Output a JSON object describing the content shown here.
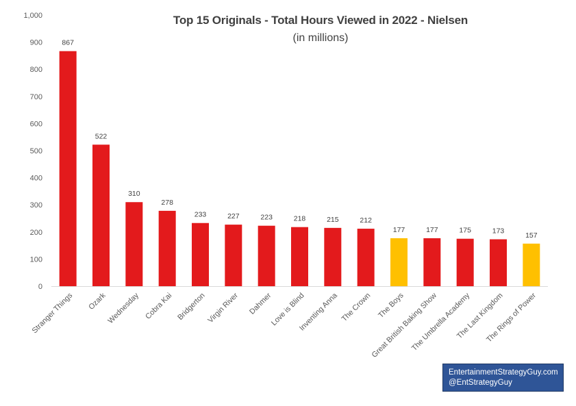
{
  "chart_data": {
    "type": "bar",
    "title": "Top 15 Originals - Total Hours Viewed in 2022 - Nielsen",
    "subtitle": "(in millions)",
    "categories": [
      "Stranger Things",
      "Ozark",
      "Wednesday",
      "Cobra Kai",
      "Bridgerton",
      "Virgin River",
      "Dahmer",
      "Love is Blind",
      "Inventing Anna",
      "The Crown",
      "The Boys",
      "Great British Baking Show",
      "The Umbrella Academy",
      "The Last Kingdom",
      "The Rings of Power"
    ],
    "values": [
      867,
      522,
      310,
      278,
      233,
      227,
      223,
      218,
      215,
      212,
      177,
      177,
      175,
      173,
      157
    ],
    "data_labels": [
      "867",
      "522",
      "310",
      "278",
      "233",
      "227",
      "223",
      "218",
      "215",
      "212",
      "177",
      "177",
      "175",
      "173",
      "157"
    ],
    "bar_colors": [
      "#e31a1c",
      "#e31a1c",
      "#e31a1c",
      "#e31a1c",
      "#e31a1c",
      "#e31a1c",
      "#e31a1c",
      "#e31a1c",
      "#e31a1c",
      "#e31a1c",
      "#ffc000",
      "#e31a1c",
      "#e31a1c",
      "#e31a1c",
      "#ffc000"
    ],
    "ylim": [
      0,
      1000
    ],
    "yticks": [
      0,
      100,
      200,
      300,
      400,
      500,
      600,
      700,
      800,
      900,
      1000
    ],
    "ytick_labels": [
      "0",
      "100",
      "200",
      "300",
      "400",
      "500",
      "600",
      "700",
      "800",
      "900",
      "1,000"
    ],
    "grid": false,
    "legend": "none",
    "xlabel": "",
    "ylabel": ""
  },
  "credit": {
    "line1": "EntertainmentStrategyGuy.com",
    "line2": "@EntStrategyGuy",
    "background": "#2f5597"
  }
}
